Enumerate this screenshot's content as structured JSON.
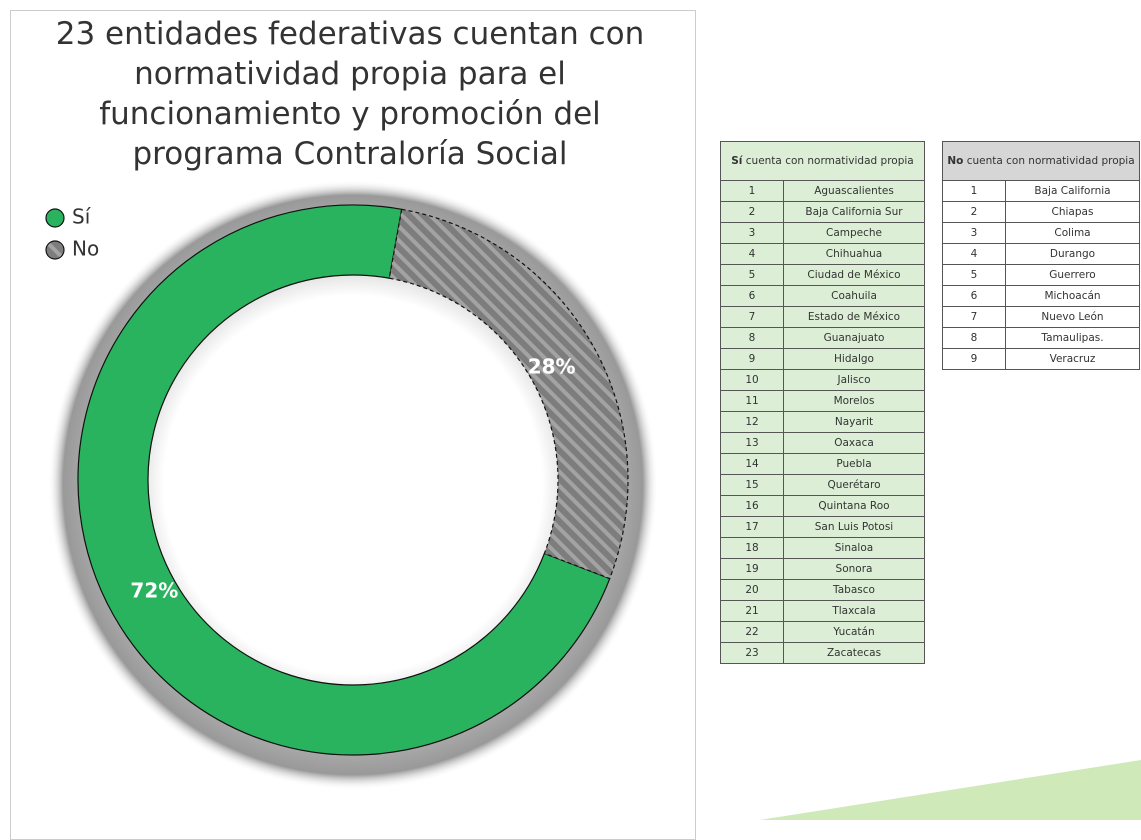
{
  "chart_data": {
    "type": "donut",
    "title": "23 entidades federativas cuentan con normatividad propia para el funcionamiento y promoción del programa Contraloría Social",
    "categories": [
      "Sí",
      "No"
    ],
    "values": [
      72,
      28
    ],
    "value_labels": [
      "72%",
      "28%"
    ],
    "colors": [
      "#2ab35e",
      "#7d7d7d"
    ],
    "legend": "upper left"
  },
  "tables": [
    {
      "header": {
        "bold": "Sí",
        "rest": "cuenta con normatividad propia"
      },
      "rows": [
        [
          1,
          "Aguascalientes"
        ],
        [
          2,
          "Baja California Sur"
        ],
        [
          3,
          "Campeche"
        ],
        [
          4,
          "Chihuahua"
        ],
        [
          5,
          "Ciudad de México"
        ],
        [
          6,
          "Coahuila"
        ],
        [
          7,
          "Estado de México"
        ],
        [
          8,
          "Guanajuato"
        ],
        [
          9,
          "Hidalgo"
        ],
        [
          10,
          "Jalisco"
        ],
        [
          11,
          "Morelos"
        ],
        [
          12,
          "Nayarit"
        ],
        [
          13,
          "Oaxaca"
        ],
        [
          14,
          "Puebla"
        ],
        [
          15,
          "Querétaro"
        ],
        [
          16,
          "Quintana Roo"
        ],
        [
          17,
          "San Luis Potosi"
        ],
        [
          18,
          "Sinaloa"
        ],
        [
          19,
          "Sonora"
        ],
        [
          20,
          "Tabasco"
        ],
        [
          21,
          "Tlaxcala"
        ],
        [
          22,
          "Yucatán"
        ],
        [
          23,
          "Zacatecas"
        ]
      ]
    },
    {
      "header": {
        "bold": "No",
        "rest": "cuenta con normatividad propia"
      },
      "rows": [
        [
          1,
          "Baja California"
        ],
        [
          2,
          "Chiapas"
        ],
        [
          3,
          "Colima"
        ],
        [
          4,
          "Durango"
        ],
        [
          5,
          "Guerrero"
        ],
        [
          6,
          "Michoacán"
        ],
        [
          7,
          "Nuevo León"
        ],
        [
          8,
          "Tamaulipas."
        ],
        [
          9,
          "Veracruz"
        ]
      ]
    }
  ]
}
